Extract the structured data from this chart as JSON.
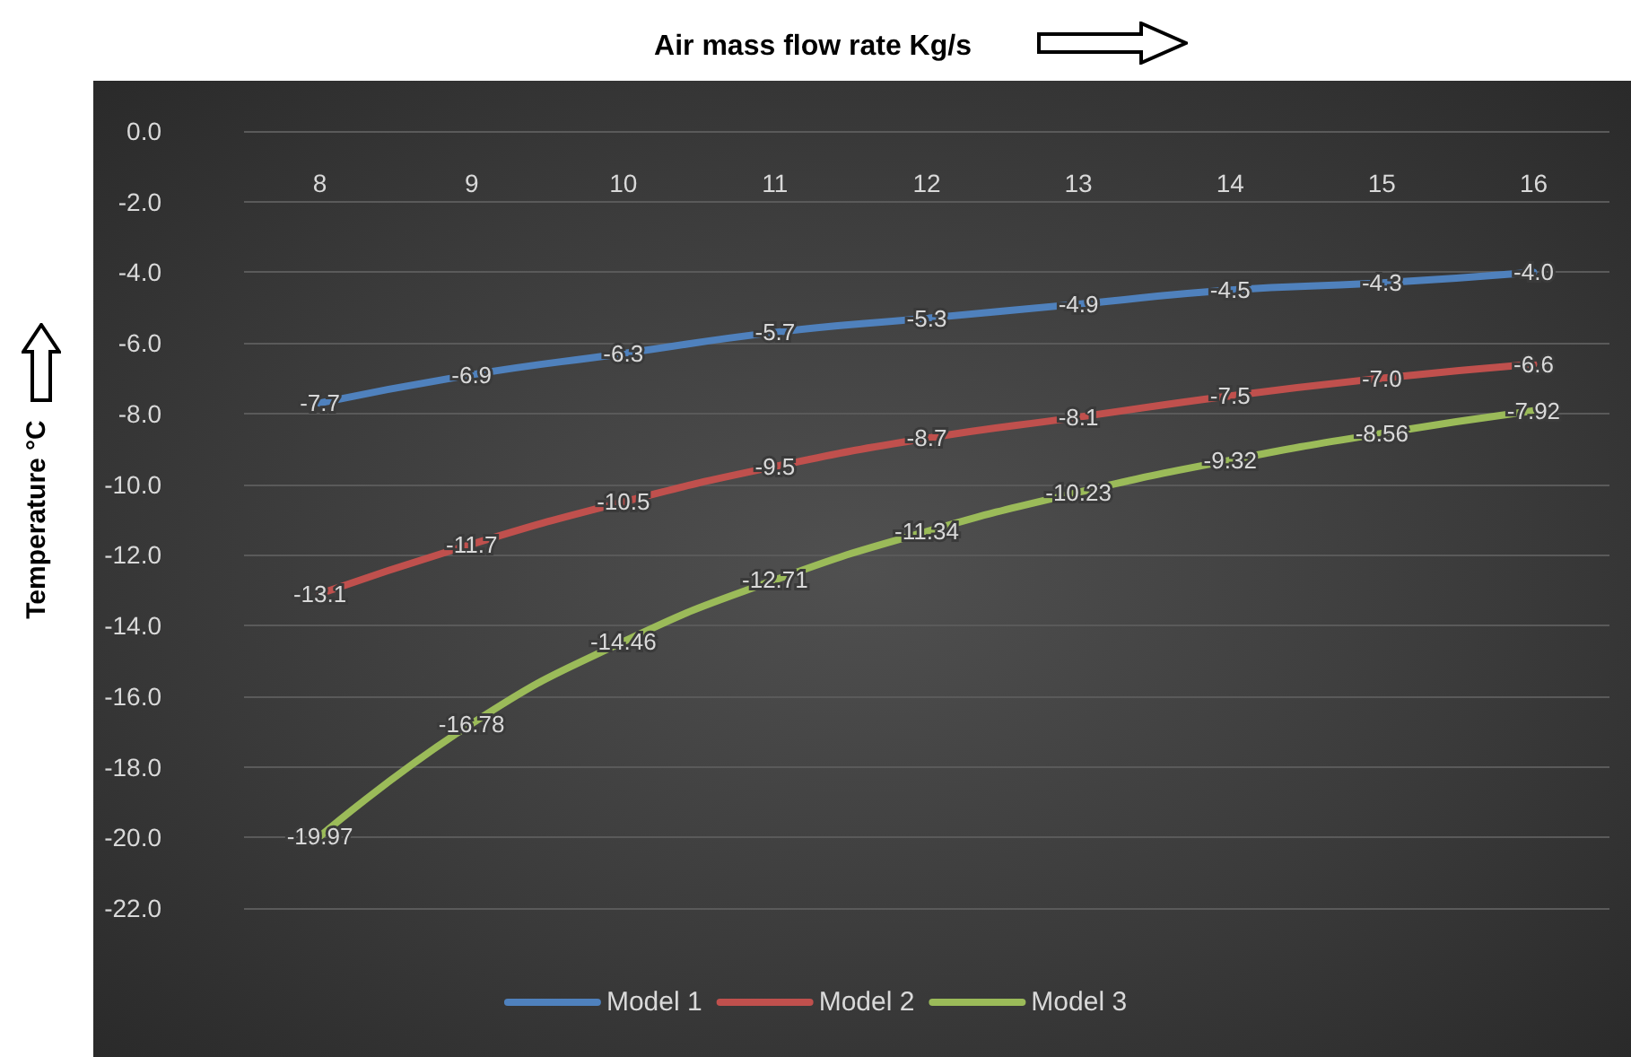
{
  "chart_data": {
    "type": "line",
    "title": "Air mass flow rate Kg/s",
    "ylabel": "Temperature °C",
    "categories": [
      "8",
      "9",
      "10",
      "11",
      "12",
      "13",
      "14",
      "15",
      "16"
    ],
    "series": [
      {
        "name": "Model 1",
        "color": "#4f81bd",
        "values": [
          -7.7,
          -6.9,
          -6.3,
          -5.7,
          -5.3,
          -4.9,
          -4.5,
          -4.3,
          -4.0
        ],
        "value_labels": [
          "-7.7",
          "-6.9",
          "-6.3",
          "-5.7",
          "-5.3",
          "-4.9",
          "-4.5",
          "-4.3",
          "-4.0"
        ]
      },
      {
        "name": "Model 2",
        "color": "#c0504d",
        "values": [
          -13.1,
          -11.7,
          -10.5,
          -9.5,
          -8.7,
          -8.1,
          -7.5,
          -7.0,
          -6.6
        ],
        "value_labels": [
          "-13.1",
          "-11.7",
          "-10.5",
          "-9.5",
          "-8.7",
          "-8.1",
          "-7.5",
          "-7.0",
          "-6.6"
        ]
      },
      {
        "name": "Model 3",
        "color": "#9bbb59",
        "values": [
          -19.97,
          -16.78,
          -14.46,
          -12.71,
          -11.34,
          -10.23,
          -9.32,
          -8.56,
          -7.92
        ],
        "value_labels": [
          "-19.97",
          "-16.78",
          "-14.46",
          "-12.71",
          "-11.34",
          "-10.23",
          "-9.32",
          "-8.56",
          "-7.92"
        ]
      }
    ],
    "ylim": [
      -22,
      0
    ],
    "yticks": [
      {
        "value": 0,
        "label": "0.0"
      },
      {
        "value": -2,
        "label": "-2.0"
      },
      {
        "value": -4,
        "label": "-4.0"
      },
      {
        "value": -6,
        "label": "-6.0"
      },
      {
        "value": -8,
        "label": "-8.0"
      },
      {
        "value": -10,
        "label": "-10.0"
      },
      {
        "value": -12,
        "label": "-12.0"
      },
      {
        "value": -14,
        "label": "-14.0"
      },
      {
        "value": -16,
        "label": "-16.0"
      },
      {
        "value": -18,
        "label": "-18.0"
      },
      {
        "value": -20,
        "label": "-20.0"
      },
      {
        "value": -22,
        "label": "-22.0"
      }
    ],
    "grid": "y",
    "legend": "bottom",
    "marker": "none"
  }
}
